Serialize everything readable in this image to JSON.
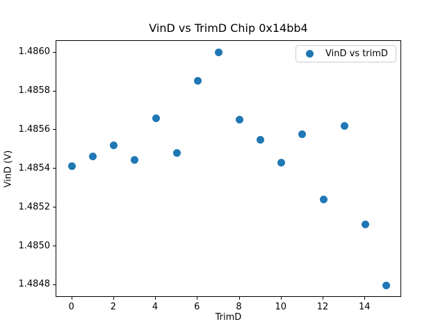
{
  "figure": {
    "background_color": "#ffffff",
    "text_color": "#000000"
  },
  "chart_data": {
    "type": "scatter",
    "title": "VinD vs TrimD Chip 0x14bb4",
    "xlabel": "TrimD",
    "ylabel": "VinD (V)",
    "legend": {
      "label": "VinD vs trimD",
      "position": "upper right",
      "marker": "circle",
      "marker_color": "#1f77b4"
    },
    "marker_color": "#1f77b4",
    "grid": false,
    "x": [
      0,
      1,
      2,
      3,
      4,
      5,
      6,
      7,
      8,
      9,
      10,
      11,
      12,
      13,
      14,
      15
    ],
    "y": [
      1.485415,
      1.485465,
      1.48552,
      1.485445,
      1.48566,
      1.485482,
      1.485855,
      1.486,
      1.485655,
      1.48555,
      1.48543,
      1.48558,
      1.48524,
      1.48562,
      1.485113,
      1.484798
    ],
    "xlim": [
      -0.75,
      15.75
    ],
    "ylim": [
      1.484735,
      1.48606
    ],
    "xticks": [
      {
        "value": 0,
        "label": "0"
      },
      {
        "value": 2,
        "label": "2"
      },
      {
        "value": 4,
        "label": "4"
      },
      {
        "value": 6,
        "label": "6"
      },
      {
        "value": 8,
        "label": "8"
      },
      {
        "value": 10,
        "label": "10"
      },
      {
        "value": 12,
        "label": "12"
      },
      {
        "value": 14,
        "label": "14"
      }
    ],
    "yticks": [
      {
        "value": 1.486,
        "label": "1.4860"
      },
      {
        "value": 1.4858,
        "label": "1.4858"
      },
      {
        "value": 1.4856,
        "label": "1.4856"
      },
      {
        "value": 1.4854,
        "label": "1.4854"
      },
      {
        "value": 1.4852,
        "label": "1.4852"
      },
      {
        "value": 1.485,
        "label": "1.4850"
      },
      {
        "value": 1.4848,
        "label": "1.4848"
      }
    ]
  }
}
